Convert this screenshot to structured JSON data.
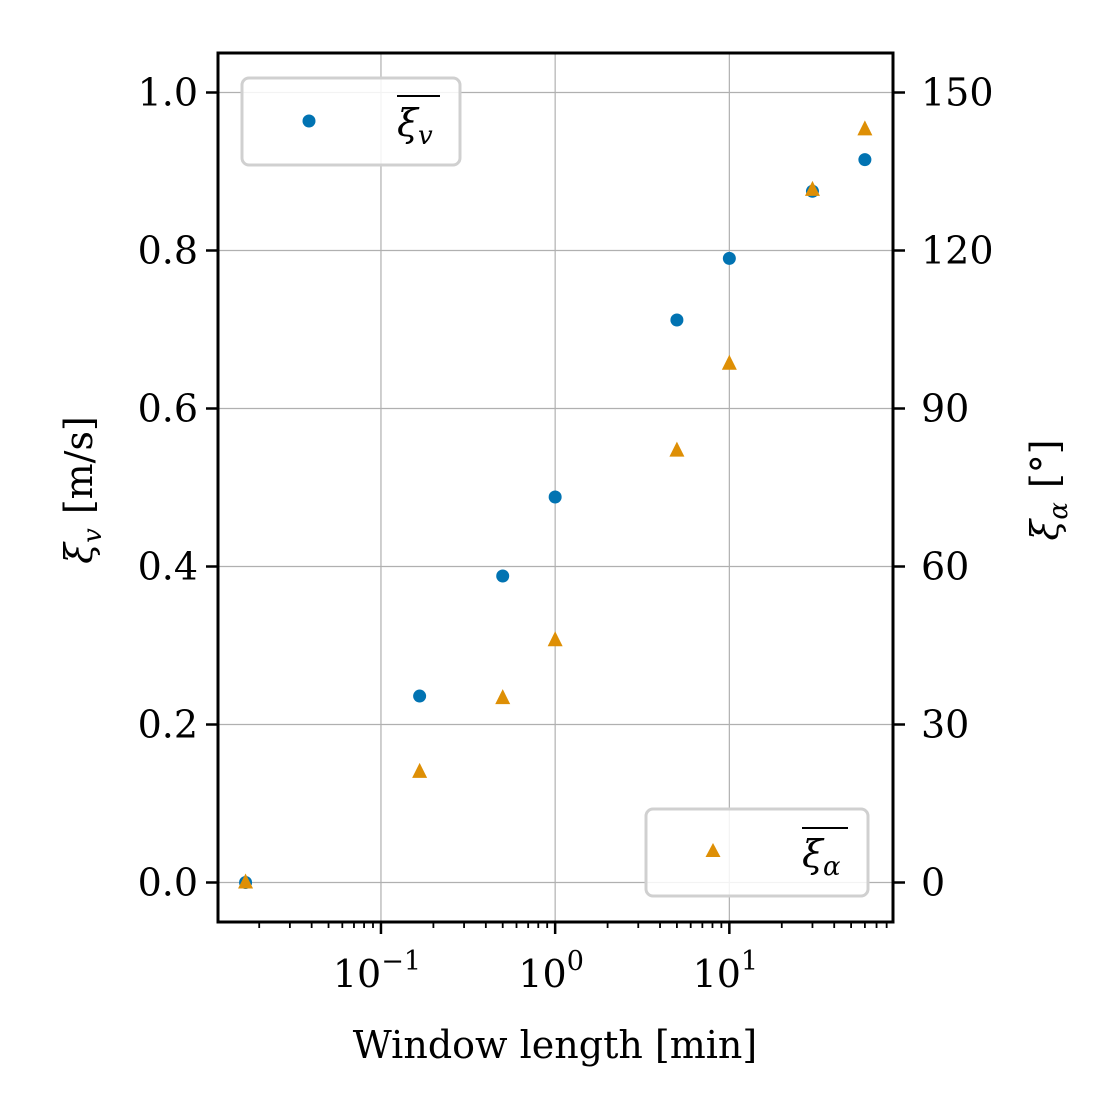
{
  "chart_data": {
    "type": "scatter",
    "xlabel": "Window length [min]",
    "ylabel_left": "ξ_v [m/s]",
    "ylabel_left_symbol": "ξ",
    "ylabel_left_sub": "v",
    "ylabel_left_unit": "[m/s]",
    "ylabel_right": "ξ_α [°]",
    "ylabel_right_symbol": "ξ",
    "ylabel_right_sub": "α",
    "ylabel_right_unit": "[°]",
    "x_scale": "log",
    "xlim": [
      0.0116,
      87
    ],
    "ylim_left": [
      -0.05,
      1.05
    ],
    "ylim_right": [
      -7.5,
      157.5
    ],
    "x_ticks": [
      0.1,
      1,
      10
    ],
    "x_tick_labels": [
      {
        "base": "10",
        "exp": "−1"
      },
      {
        "base": "10",
        "exp": "0"
      },
      {
        "base": "10",
        "exp": "1"
      }
    ],
    "y_left_ticks": [
      0.0,
      0.2,
      0.4,
      0.6,
      0.8,
      1.0
    ],
    "y_left_tick_labels": [
      "0.0",
      "0.2",
      "0.4",
      "0.6",
      "0.8",
      "1.0"
    ],
    "y_right_ticks": [
      0,
      30,
      60,
      90,
      120,
      150
    ],
    "y_right_tick_labels": [
      "0",
      "30",
      "60",
      "90",
      "120",
      "150"
    ],
    "grid": true,
    "series": [
      {
        "name": "ξ_v (mean)",
        "legend_symbol": "ξ",
        "legend_sub": "v",
        "axis": "left",
        "marker": "circle",
        "color": "#0173b2",
        "legend_position": "top-left",
        "x": [
          0.0167,
          0.1667,
          0.5,
          1,
          5,
          10,
          30,
          60
        ],
        "y": [
          0.0,
          0.236,
          0.388,
          0.488,
          0.712,
          0.79,
          0.875,
          0.915
        ]
      },
      {
        "name": "ξ_α (mean)",
        "legend_symbol": "ξ",
        "legend_sub": "α",
        "axis": "right",
        "marker": "triangle",
        "color": "#de8f05",
        "legend_position": "bottom-right",
        "x": [
          0.0167,
          0.1667,
          0.5,
          1,
          5,
          10,
          30,
          60
        ],
        "y": [
          0,
          21,
          35,
          46,
          82,
          98.5,
          131.5,
          143
        ]
      }
    ]
  }
}
